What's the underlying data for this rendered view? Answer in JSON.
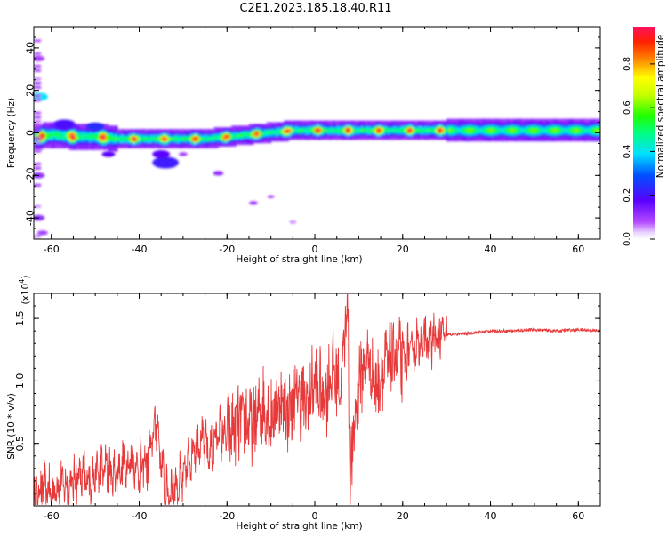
{
  "page": {
    "title": "C2E1.2023.185.18.40.R11"
  },
  "colors": {
    "snr_line": "#e8393a",
    "background": "#ffffff"
  },
  "chart_data": [
    {
      "type": "heatmap",
      "xlabel": "Height of straight line (km)",
      "ylabel": "Frequency (Hz)",
      "xlim": [
        -64,
        65
      ],
      "ylim": [
        -50,
        50
      ],
      "x_ticks": [
        -60,
        -40,
        -20,
        0,
        20,
        40,
        60
      ],
      "x_tick_labels": [
        "-60",
        "-40",
        "-20",
        "0",
        "20",
        "40",
        "60"
      ],
      "y_ticks": [
        -40,
        -20,
        0,
        20,
        40
      ],
      "y_tick_labels": [
        "-40",
        "-20",
        "0",
        "20",
        "40"
      ],
      "colorbar": {
        "label": "Normalized spectral amplitude",
        "range": [
          0,
          0.97
        ],
        "ticks": [
          0.0,
          0.2,
          0.4,
          0.6,
          0.8
        ],
        "tick_labels": [
          "0.0",
          "0.2",
          "0.4",
          "0.6",
          "0.8"
        ],
        "colormap": "rainbow"
      },
      "ridge": {
        "description_points_x": [
          -63,
          -60,
          -55,
          -50,
          -45,
          -40,
          -35,
          -30,
          -25,
          -20,
          -15,
          -10,
          -5,
          0,
          5,
          10,
          15,
          20,
          25,
          30,
          40,
          50,
          60,
          65
        ],
        "center_freq_hz": [
          -2,
          -1,
          -2,
          -2,
          -3,
          -3,
          -3,
          -3,
          -3,
          -2,
          -1,
          0,
          1,
          1,
          1,
          1,
          1,
          1,
          1,
          1,
          1,
          1,
          1,
          1
        ]
      }
    },
    {
      "type": "line",
      "xlabel": "Height of straight line (km)",
      "ylabel": "SNR (10 * v/v)",
      "y_multiplier_label": "(x10",
      "y_multiplier_exp": "4",
      "y_multiplier_close": ")",
      "xlim": [
        -64,
        65
      ],
      "ylim": [
        0,
        1.7
      ],
      "x_ticks": [
        -60,
        -40,
        -20,
        0,
        20,
        40,
        60
      ],
      "x_tick_labels": [
        "-60",
        "-40",
        "-20",
        "0",
        "20",
        "40",
        "60"
      ],
      "y_ticks": [
        0.5,
        1.0,
        1.5
      ],
      "y_tick_labels": [
        "0.5",
        "1.0",
        "1.5"
      ],
      "series": [
        {
          "x": [
            -64,
            -62,
            -60,
            -58,
            -56,
            -54,
            -52,
            -50,
            -48,
            -46,
            -44,
            -42,
            -40,
            -38,
            -36,
            -35,
            -34,
            -32,
            -30,
            -28,
            -26,
            -24,
            -22,
            -20,
            -18,
            -16,
            -14,
            -12,
            -10,
            -8,
            -6,
            -4,
            -2,
            0,
            2,
            4,
            6,
            7.5,
            8,
            10,
            12,
            14,
            16,
            18,
            20,
            22,
            24,
            26,
            28,
            30,
            35,
            40,
            45,
            50,
            55,
            60,
            65
          ],
          "y": [
            0.05,
            0.15,
            0.1,
            0.2,
            0.15,
            0.25,
            0.2,
            0.25,
            0.3,
            0.25,
            0.3,
            0.35,
            0.3,
            0.35,
            0.7,
            0.35,
            0.1,
            0.15,
            0.2,
            0.45,
            0.55,
            0.4,
            0.6,
            0.55,
            0.65,
            0.7,
            0.65,
            0.8,
            0.7,
            0.85,
            0.75,
            0.9,
            0.8,
            1.0,
            0.85,
            1.1,
            0.95,
            1.7,
            0.2,
            1.0,
            1.2,
            0.95,
            1.1,
            1.2,
            1.15,
            1.25,
            1.3,
            1.32,
            1.35,
            1.37,
            1.38,
            1.4,
            1.4,
            1.41,
            1.4,
            1.41,
            1.4
          ]
        }
      ]
    }
  ]
}
